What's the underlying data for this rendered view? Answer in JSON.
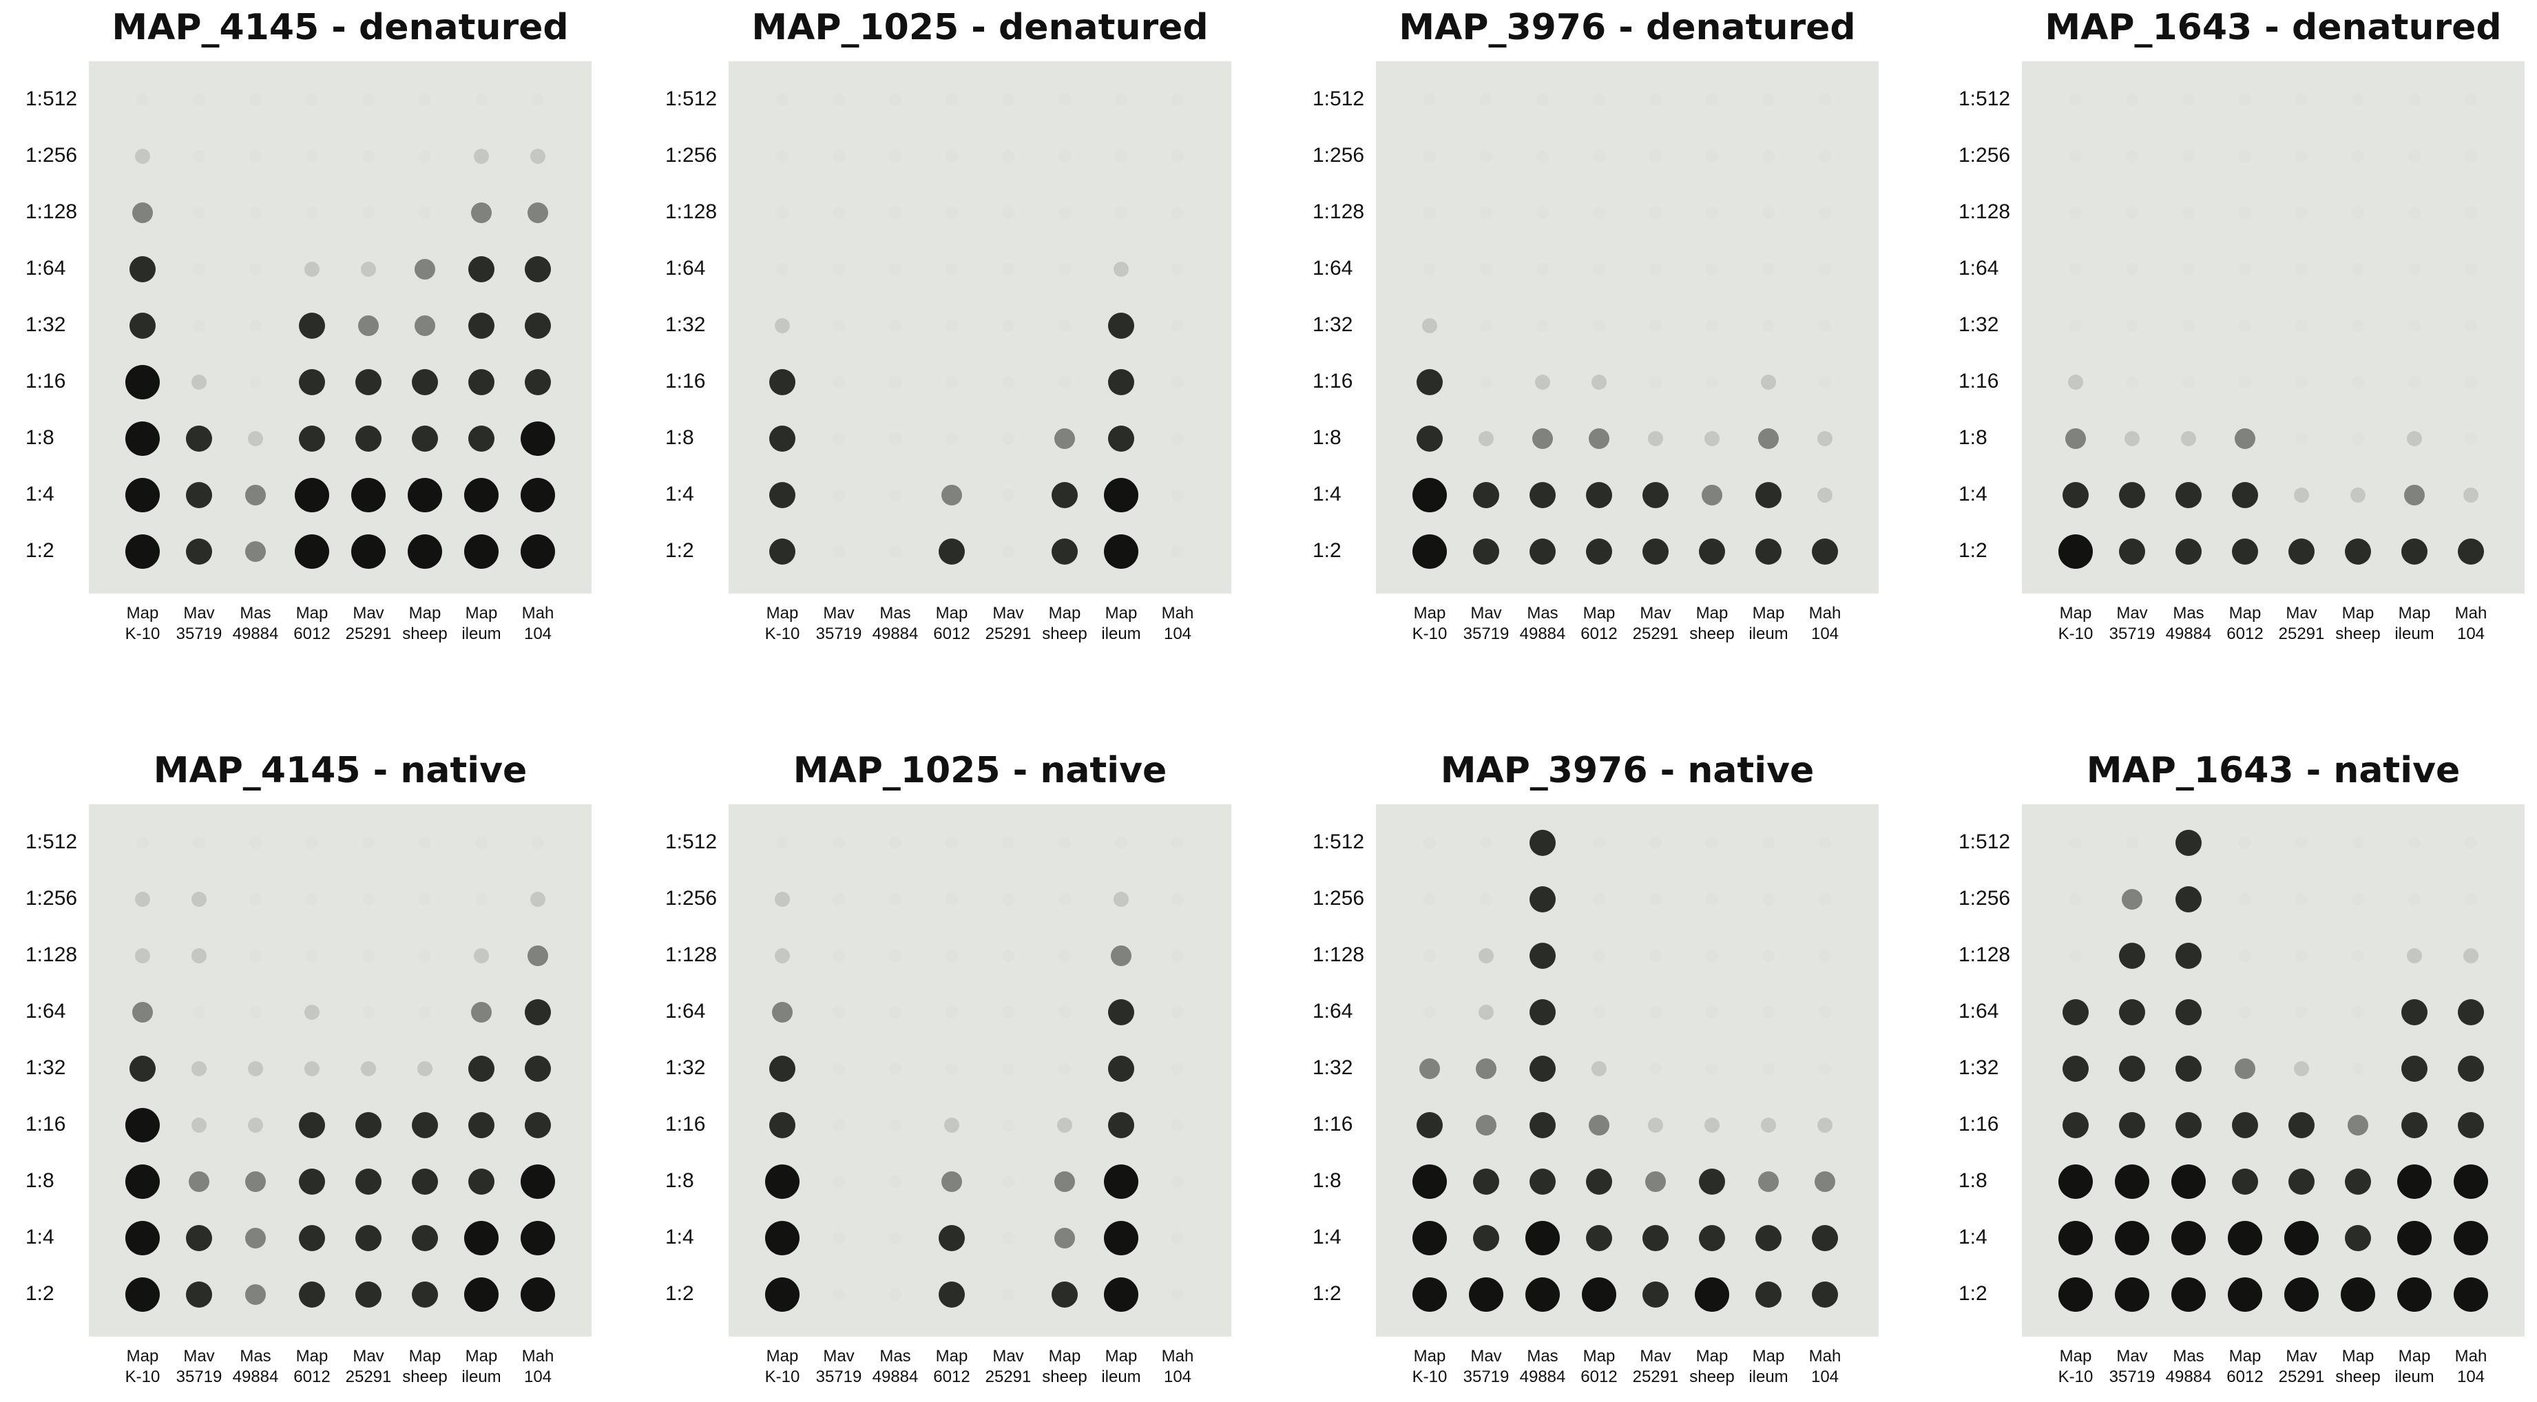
{
  "panels": [
    {
      "title": "MAP_4145 - denatured",
      "rows": [
        "1:512",
        "1:256",
        "1:128",
        "1:64",
        "1:32",
        "1:16",
        "1:8",
        "1:4",
        "1:2"
      ],
      "columns": [
        [
          "Map",
          "K-10"
        ],
        [
          "Mav",
          "35719"
        ],
        [
          "Mas",
          "49884"
        ],
        [
          "Map",
          "6012"
        ],
        [
          "Mav",
          "25291"
        ],
        [
          "Map",
          "sheep"
        ],
        [
          "Map",
          "ileum"
        ],
        [
          "Mah",
          "104"
        ]
      ],
      "intensity": [
        [
          0,
          0,
          0,
          0,
          0,
          0,
          0,
          0
        ],
        [
          1,
          0,
          0,
          0,
          0,
          0,
          1,
          1
        ],
        [
          2,
          0,
          0,
          0,
          0,
          0,
          2,
          2
        ],
        [
          3,
          0,
          0,
          1,
          1,
          2,
          3,
          3
        ],
        [
          3,
          0,
          0,
          3,
          2,
          2,
          3,
          3
        ],
        [
          4,
          1,
          0,
          3,
          3,
          3,
          3,
          3
        ],
        [
          4,
          3,
          1,
          3,
          3,
          3,
          3,
          4
        ],
        [
          4,
          3,
          2,
          4,
          4,
          4,
          4,
          4
        ],
        [
          4,
          3,
          2,
          4,
          4,
          4,
          4,
          4
        ]
      ]
    },
    {
      "title": "MAP_1025 - denatured",
      "rows": [
        "1:512",
        "1:256",
        "1:128",
        "1:64",
        "1:32",
        "1:16",
        "1:8",
        "1:4",
        "1:2"
      ],
      "columns": [
        [
          "Map",
          "K-10"
        ],
        [
          "Mav",
          "35719"
        ],
        [
          "Mas",
          "49884"
        ],
        [
          "Map",
          "6012"
        ],
        [
          "Mav",
          "25291"
        ],
        [
          "Map",
          "sheep"
        ],
        [
          "Map",
          "ileum"
        ],
        [
          "Mah",
          "104"
        ]
      ],
      "intensity": [
        [
          0,
          0,
          0,
          0,
          0,
          0,
          0,
          0
        ],
        [
          0,
          0,
          0,
          0,
          0,
          0,
          0,
          0
        ],
        [
          0,
          0,
          0,
          0,
          0,
          0,
          0,
          0
        ],
        [
          0,
          0,
          0,
          0,
          0,
          0,
          1,
          0
        ],
        [
          1,
          0,
          0,
          0,
          0,
          0,
          3,
          0
        ],
        [
          3,
          0,
          0,
          0,
          0,
          0,
          3,
          0
        ],
        [
          3,
          0,
          0,
          0,
          0,
          2,
          3,
          0
        ],
        [
          3,
          0,
          0,
          2,
          0,
          3,
          4,
          0
        ],
        [
          3,
          0,
          0,
          3,
          0,
          3,
          4,
          0
        ]
      ]
    },
    {
      "title": "MAP_3976 - denatured",
      "rows": [
        "1:512",
        "1:256",
        "1:128",
        "1:64",
        "1:32",
        "1:16",
        "1:8",
        "1:4",
        "1:2"
      ],
      "columns": [
        [
          "Map",
          "K-10"
        ],
        [
          "Mav",
          "35719"
        ],
        [
          "Mas",
          "49884"
        ],
        [
          "Map",
          "6012"
        ],
        [
          "Mav",
          "25291"
        ],
        [
          "Map",
          "sheep"
        ],
        [
          "Map",
          "ileum"
        ],
        [
          "Mah",
          "104"
        ]
      ],
      "intensity": [
        [
          0,
          0,
          0,
          0,
          0,
          0,
          0,
          0
        ],
        [
          0,
          0,
          0,
          0,
          0,
          0,
          0,
          0
        ],
        [
          0,
          0,
          0,
          0,
          0,
          0,
          0,
          0
        ],
        [
          0,
          0,
          0,
          0,
          0,
          0,
          0,
          0
        ],
        [
          1,
          0,
          0,
          0,
          0,
          0,
          0,
          0
        ],
        [
          3,
          0,
          1,
          1,
          0,
          0,
          1,
          0
        ],
        [
          3,
          1,
          2,
          2,
          1,
          1,
          2,
          1
        ],
        [
          4,
          3,
          3,
          3,
          3,
          2,
          3,
          1
        ],
        [
          4,
          3,
          3,
          3,
          3,
          3,
          3,
          3
        ]
      ]
    },
    {
      "title": "MAP_1643 - denatured",
      "rows": [
        "1:512",
        "1:256",
        "1:128",
        "1:64",
        "1:32",
        "1:16",
        "1:8",
        "1:4",
        "1:2"
      ],
      "columns": [
        [
          "Map",
          "K-10"
        ],
        [
          "Mav",
          "35719"
        ],
        [
          "Mas",
          "49884"
        ],
        [
          "Map",
          "6012"
        ],
        [
          "Mav",
          "25291"
        ],
        [
          "Map",
          "sheep"
        ],
        [
          "Map",
          "ileum"
        ],
        [
          "Mah",
          "104"
        ]
      ],
      "intensity": [
        [
          0,
          0,
          0,
          0,
          0,
          0,
          0,
          0
        ],
        [
          0,
          0,
          0,
          0,
          0,
          0,
          0,
          0
        ],
        [
          0,
          0,
          0,
          0,
          0,
          0,
          0,
          0
        ],
        [
          0,
          0,
          0,
          0,
          0,
          0,
          0,
          0
        ],
        [
          0,
          0,
          0,
          0,
          0,
          0,
          0,
          0
        ],
        [
          1,
          0,
          0,
          0,
          0,
          0,
          0,
          0
        ],
        [
          2,
          1,
          1,
          2,
          0,
          0,
          1,
          0
        ],
        [
          3,
          3,
          3,
          3,
          1,
          1,
          2,
          1
        ],
        [
          4,
          3,
          3,
          3,
          3,
          3,
          3,
          3
        ]
      ]
    },
    {
      "title": "MAP_4145 - native",
      "rows": [
        "1:512",
        "1:256",
        "1:128",
        "1:64",
        "1:32",
        "1:16",
        "1:8",
        "1:4",
        "1:2"
      ],
      "columns": [
        [
          "Map",
          "K-10"
        ],
        [
          "Mav",
          "35719"
        ],
        [
          "Mas",
          "49884"
        ],
        [
          "Map",
          "6012"
        ],
        [
          "Mav",
          "25291"
        ],
        [
          "Map",
          "sheep"
        ],
        [
          "Map",
          "ileum"
        ],
        [
          "Mah",
          "104"
        ]
      ],
      "intensity": [
        [
          0,
          0,
          0,
          0,
          0,
          0,
          0,
          0
        ],
        [
          1,
          1,
          0,
          0,
          0,
          0,
          0,
          1
        ],
        [
          1,
          1,
          0,
          0,
          0,
          0,
          1,
          2
        ],
        [
          2,
          0,
          0,
          1,
          0,
          0,
          2,
          3
        ],
        [
          3,
          1,
          1,
          1,
          1,
          1,
          3,
          3
        ],
        [
          4,
          1,
          1,
          3,
          3,
          3,
          3,
          3
        ],
        [
          4,
          2,
          2,
          3,
          3,
          3,
          3,
          4
        ],
        [
          4,
          3,
          2,
          3,
          3,
          3,
          4,
          4
        ],
        [
          4,
          3,
          2,
          3,
          3,
          3,
          4,
          4
        ]
      ]
    },
    {
      "title": "MAP_1025 - native",
      "rows": [
        "1:512",
        "1:256",
        "1:128",
        "1:64",
        "1:32",
        "1:16",
        "1:8",
        "1:4",
        "1:2"
      ],
      "columns": [
        [
          "Map",
          "K-10"
        ],
        [
          "Mav",
          "35719"
        ],
        [
          "Mas",
          "49884"
        ],
        [
          "Map",
          "6012"
        ],
        [
          "Mav",
          "25291"
        ],
        [
          "Map",
          "sheep"
        ],
        [
          "Map",
          "ileum"
        ],
        [
          "Mah",
          "104"
        ]
      ],
      "intensity": [
        [
          0,
          0,
          0,
          0,
          0,
          0,
          0,
          0
        ],
        [
          1,
          0,
          0,
          0,
          0,
          0,
          1,
          0
        ],
        [
          1,
          0,
          0,
          0,
          0,
          0,
          2,
          0
        ],
        [
          2,
          0,
          0,
          0,
          0,
          0,
          3,
          0
        ],
        [
          3,
          0,
          0,
          0,
          0,
          0,
          3,
          0
        ],
        [
          3,
          0,
          0,
          1,
          0,
          1,
          3,
          0
        ],
        [
          4,
          0,
          0,
          2,
          0,
          2,
          4,
          0
        ],
        [
          4,
          0,
          0,
          3,
          0,
          2,
          4,
          0
        ],
        [
          4,
          0,
          0,
          3,
          0,
          3,
          4,
          0
        ]
      ]
    },
    {
      "title": "MAP_3976 - native",
      "rows": [
        "1:512",
        "1:256",
        "1:128",
        "1:64",
        "1:32",
        "1:16",
        "1:8",
        "1:4",
        "1:2"
      ],
      "columns": [
        [
          "Map",
          "K-10"
        ],
        [
          "Mav",
          "35719"
        ],
        [
          "Mas",
          "49884"
        ],
        [
          "Map",
          "6012"
        ],
        [
          "Mav",
          "25291"
        ],
        [
          "Map",
          "sheep"
        ],
        [
          "Map",
          "ileum"
        ],
        [
          "Mah",
          "104"
        ]
      ],
      "intensity": [
        [
          0,
          0,
          3,
          0,
          0,
          0,
          0,
          0
        ],
        [
          0,
          0,
          3,
          0,
          0,
          0,
          0,
          0
        ],
        [
          0,
          1,
          3,
          0,
          0,
          0,
          0,
          0
        ],
        [
          0,
          1,
          3,
          0,
          0,
          0,
          0,
          0
        ],
        [
          2,
          2,
          3,
          1,
          0,
          0,
          0,
          0
        ],
        [
          3,
          2,
          3,
          2,
          1,
          1,
          1,
          1
        ],
        [
          4,
          3,
          3,
          3,
          2,
          3,
          2,
          2
        ],
        [
          4,
          3,
          4,
          3,
          3,
          3,
          3,
          3
        ],
        [
          4,
          4,
          4,
          4,
          3,
          4,
          3,
          3
        ]
      ]
    },
    {
      "title": "MAP_1643 - native",
      "rows": [
        "1:512",
        "1:256",
        "1:128",
        "1:64",
        "1:32",
        "1:16",
        "1:8",
        "1:4",
        "1:2"
      ],
      "columns": [
        [
          "Map",
          "K-10"
        ],
        [
          "Mav",
          "35719"
        ],
        [
          "Mas",
          "49884"
        ],
        [
          "Map",
          "6012"
        ],
        [
          "Mav",
          "25291"
        ],
        [
          "Map",
          "sheep"
        ],
        [
          "Map",
          "ileum"
        ],
        [
          "Mah",
          "104"
        ]
      ],
      "intensity": [
        [
          0,
          0,
          3,
          0,
          0,
          0,
          0,
          0
        ],
        [
          0,
          2,
          3,
          0,
          0,
          0,
          0,
          0
        ],
        [
          0,
          3,
          3,
          0,
          0,
          0,
          1,
          1
        ],
        [
          3,
          3,
          3,
          0,
          0,
          0,
          3,
          3
        ],
        [
          3,
          3,
          3,
          2,
          1,
          0,
          3,
          3
        ],
        [
          3,
          3,
          3,
          3,
          3,
          2,
          3,
          3
        ],
        [
          4,
          4,
          4,
          3,
          3,
          3,
          4,
          4
        ],
        [
          4,
          4,
          4,
          4,
          4,
          3,
          4,
          4
        ],
        [
          4,
          4,
          4,
          4,
          4,
          4,
          4,
          4
        ]
      ]
    }
  ]
}
